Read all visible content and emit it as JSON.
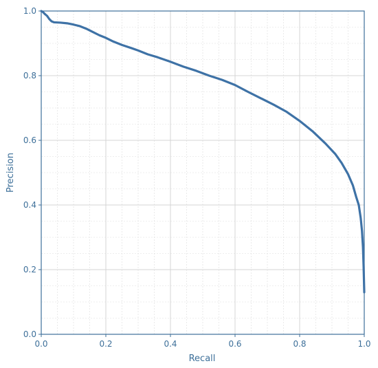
{
  "chart_data": {
    "type": "line",
    "title": "",
    "xlabel": "Recall",
    "ylabel": "Precision",
    "xlim": [
      0.0,
      1.0
    ],
    "ylim": [
      0.0,
      1.0
    ],
    "x_ticks": [
      0.0,
      0.2,
      0.4,
      0.6,
      0.8,
      1.0
    ],
    "y_ticks": [
      0.0,
      0.2,
      0.4,
      0.6,
      0.8,
      1.0
    ],
    "x_tick_labels": [
      "0.0",
      "0.2",
      "0.4",
      "0.6",
      "0.8",
      "1.0"
    ],
    "y_tick_labels": [
      "0.0",
      "0.2",
      "0.4",
      "0.6",
      "0.8",
      "1.0"
    ],
    "grid": true,
    "minor_grid": true,
    "legend": "none",
    "line_color": "#3e72a6",
    "axis_color": "#3d6f99",
    "grid_color": "#dddddd",
    "series": [
      {
        "x": [
          0.0,
          0.005,
          0.012,
          0.018,
          0.025,
          0.032,
          0.04,
          0.06,
          0.08,
          0.1,
          0.12,
          0.14,
          0.16,
          0.18,
          0.2,
          0.22,
          0.25,
          0.28,
          0.3,
          0.33,
          0.36,
          0.4,
          0.44,
          0.48,
          0.52,
          0.56,
          0.6,
          0.64,
          0.68,
          0.72,
          0.76,
          0.8,
          0.84,
          0.88,
          0.91,
          0.93,
          0.95,
          0.965,
          0.975,
          0.983,
          0.989,
          0.993,
          0.996,
          0.998,
          0.999,
          1.0
        ],
        "y": [
          1.0,
          0.997,
          0.99,
          0.985,
          0.975,
          0.968,
          0.965,
          0.964,
          0.962,
          0.958,
          0.953,
          0.945,
          0.935,
          0.925,
          0.917,
          0.907,
          0.895,
          0.885,
          0.878,
          0.866,
          0.857,
          0.843,
          0.828,
          0.815,
          0.8,
          0.787,
          0.771,
          0.75,
          0.73,
          0.71,
          0.688,
          0.66,
          0.628,
          0.59,
          0.558,
          0.53,
          0.495,
          0.46,
          0.425,
          0.4,
          0.36,
          0.32,
          0.27,
          0.21,
          0.17,
          0.13
        ]
      }
    ]
  }
}
